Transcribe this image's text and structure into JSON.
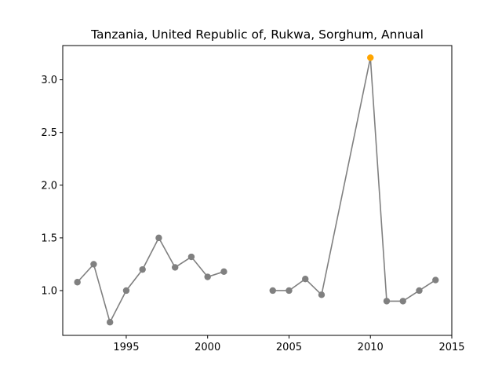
{
  "chart_data": {
    "type": "line",
    "title": "Tanzania, United Republic of, Rukwa, Sorghum, Annual",
    "xlabel": "",
    "ylabel": "",
    "xlim": [
      1991.1,
      2015.0
    ],
    "ylim": [
      0.575,
      3.325
    ],
    "x_ticks": [
      "1995",
      "2000",
      "2005",
      "2010",
      "2015"
    ],
    "y_ticks": [
      "1.0",
      "1.5",
      "2.0",
      "2.5",
      "3.0"
    ],
    "grid": false,
    "line_color": "#808080",
    "marker_color": "#808080",
    "highlight_color": "#FFA500",
    "segments": [
      {
        "x": [
          1992,
          1993,
          1994,
          1995,
          1996,
          1997,
          1998,
          1999,
          2000,
          2001
        ],
        "y": [
          1.08,
          1.25,
          0.7,
          1.0,
          1.2,
          1.5,
          1.22,
          1.32,
          1.13,
          1.18
        ]
      },
      {
        "x": [
          2004,
          2005,
          2006,
          2007,
          2010,
          2011,
          2012,
          2013,
          2014
        ],
        "y": [
          1.0,
          1.0,
          1.11,
          0.96,
          3.21,
          0.9,
          0.9,
          1.0,
          1.1
        ]
      }
    ],
    "highlight": {
      "x": 2010,
      "y": 3.21
    }
  }
}
